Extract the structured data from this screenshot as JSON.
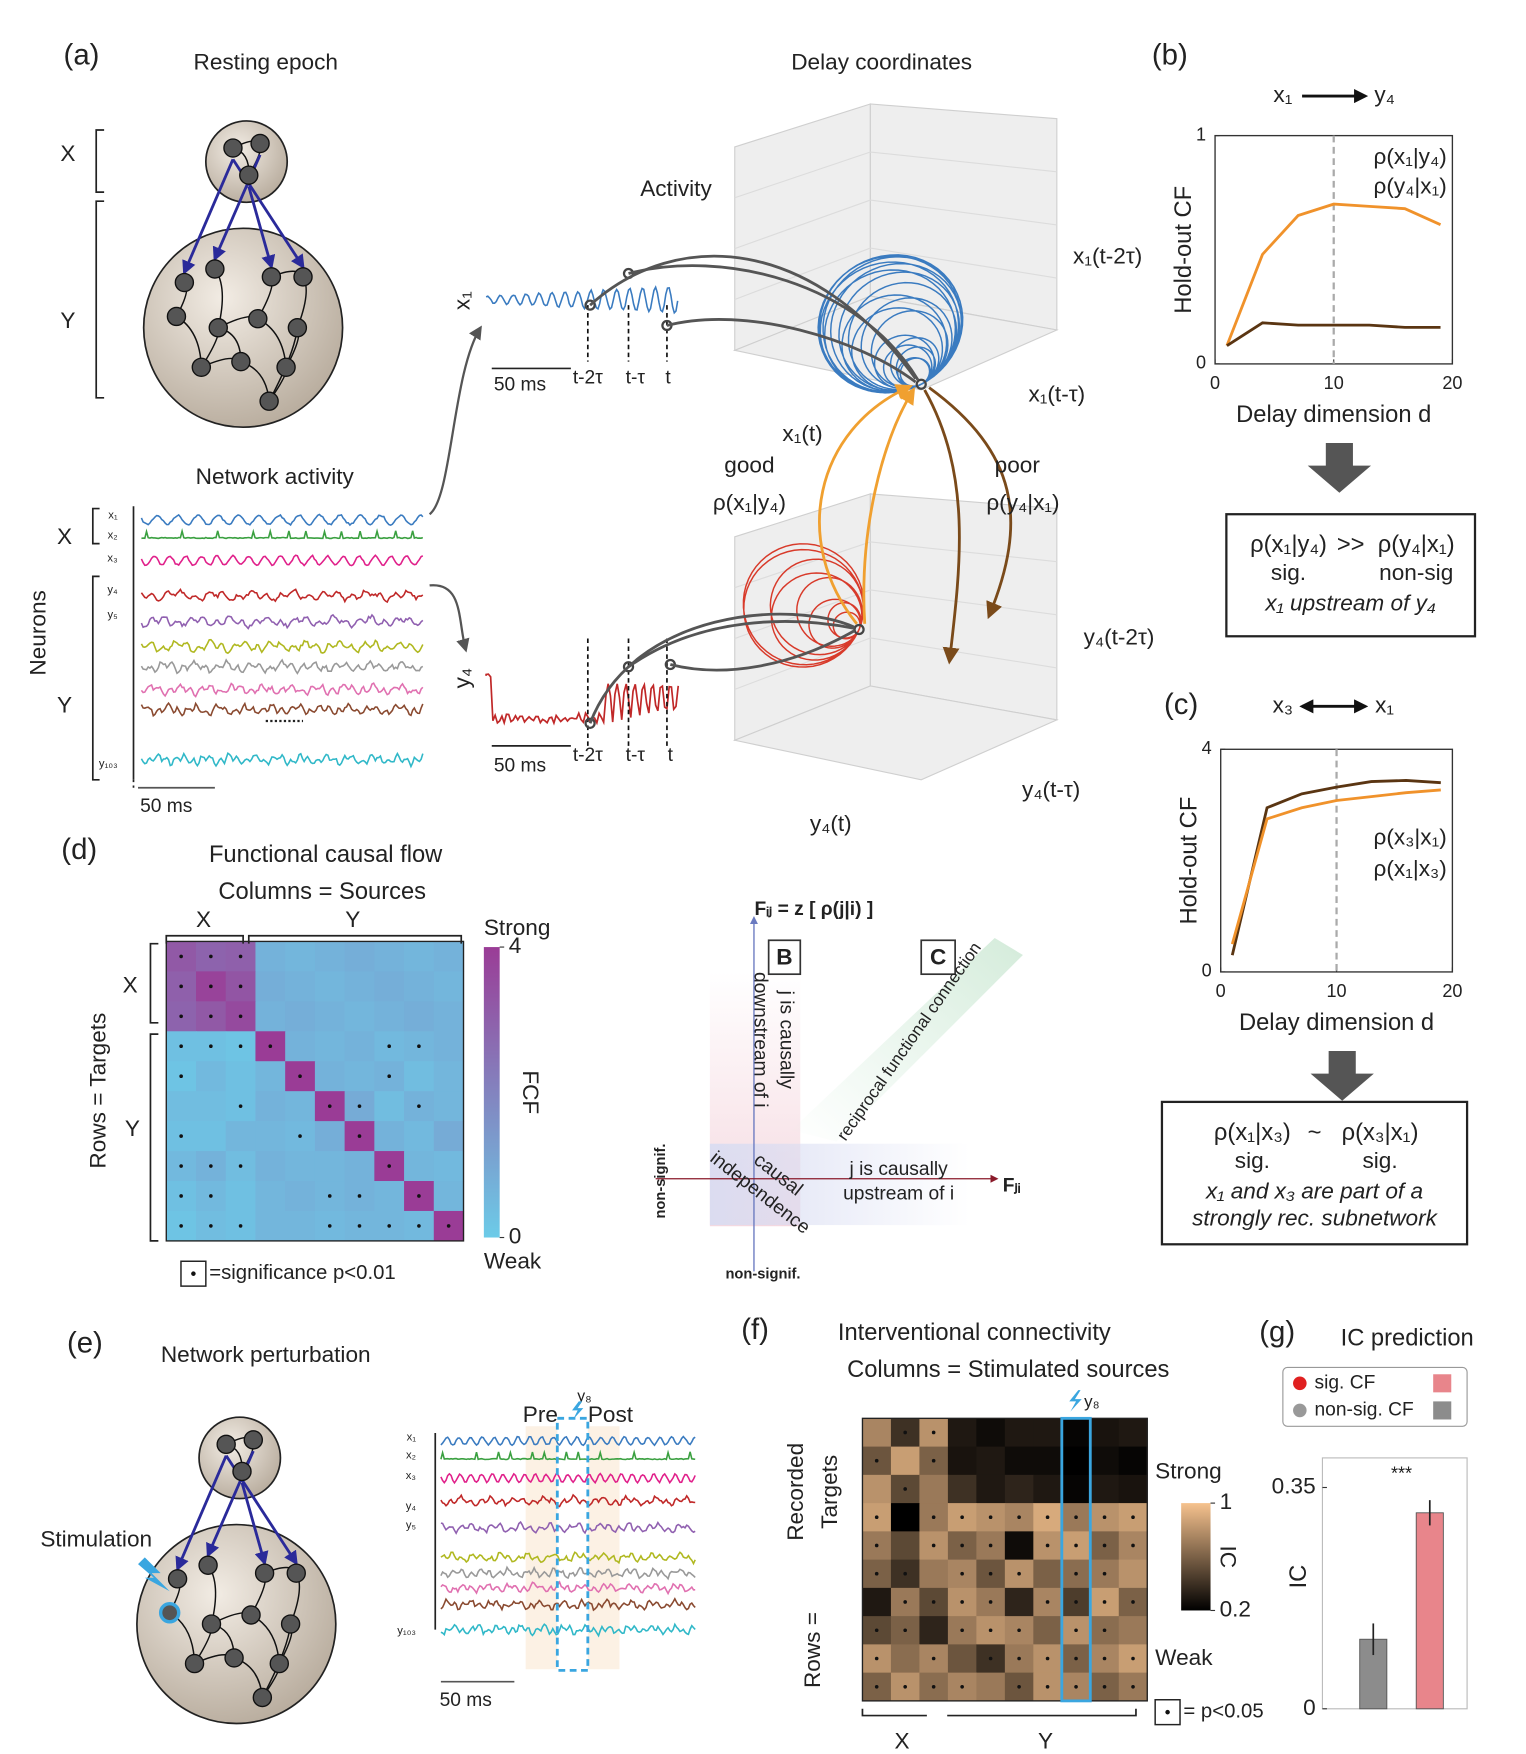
{
  "figure": {
    "a": {
      "label": "(a)",
      "resting": "Resting epoch",
      "delay": "Delay coordinates",
      "activity": "Activity",
      "network": "Network activity",
      "neurons": "Neurons",
      "X": "X",
      "Y": "Y",
      "scale": "50 ms",
      "x1": "x₁",
      "y4": "y₄",
      "t2": "t-2τ",
      "t1": "t-τ",
      "t": "t",
      "ax": [
        "x₁(t-2τ)",
        "x₁(t-τ)",
        "x₁(t)"
      ],
      "ay": [
        "y₄(t-2τ)",
        "y₄(t-τ)",
        "y₄(t)"
      ],
      "good": "good",
      "goodrho": "ρ(x₁|y₄)",
      "poor": "poor",
      "poorrho": "ρ(y₄|x₁)",
      "traces": [
        "x₁",
        "x₂",
        "x₃",
        "y₄",
        "y₅",
        "y₁₀₃"
      ]
    },
    "diagram": {
      "fij": "Fᵢⱼ = z [ ρ(j|i) ]",
      "fji": "Fⱼᵢ",
      "B": "B",
      "C": "C",
      "down1": "j is causally",
      "down2": "downstream of i",
      "recip": "reciprocal functional connection",
      "ind1": "causal",
      "ind2": "independence",
      "up1": "j is causally",
      "up2": "upstream of i",
      "nonsig": "non-signif."
    },
    "e": {
      "label": "(e)",
      "title": "Network perturbation",
      "stim": "Stimulation",
      "pre": "Pre",
      "post": "Post",
      "y8": "y₈",
      "scale": "50 ms",
      "traces": [
        "x₁",
        "x₂",
        "x₃",
        "y₄",
        "y₅",
        "y₁₀₃"
      ]
    }
  },
  "chart_data": [
    {
      "type": "line",
      "label": "(b)",
      "source": "x₁",
      "source_color": "#2a6fb5",
      "target": "y₄",
      "target_color": "#d93030",
      "bidirectional": false,
      "x": [
        1,
        4,
        7,
        10,
        13,
        16,
        19
      ],
      "xlim": [
        0,
        20
      ],
      "xticks": [
        0,
        10,
        20
      ],
      "ylim": [
        0,
        1
      ],
      "yticks": [
        0,
        1
      ],
      "vline": 10,
      "xlabel": "Delay dimension d",
      "ylabel": "Hold-out CF",
      "series": [
        {
          "name": "ρ(x₁|y₄)",
          "color": "#f0922b",
          "values": [
            0.08,
            0.48,
            0.65,
            0.7,
            0.69,
            0.68,
            0.61
          ]
        },
        {
          "name": "ρ(y₄|x₁)",
          "color": "#5a3512",
          "values": [
            0.08,
            0.18,
            0.17,
            0.17,
            0.17,
            0.16,
            0.16
          ]
        }
      ],
      "conclusion": {
        "left": "ρ(x₁|y₄)",
        "op": ">>",
        "right": "ρ(y₄|x₁)",
        "left_sig": "sig.",
        "right_sig": "non-sig",
        "note": [
          "x₁ upstream of y₄"
        ]
      }
    },
    {
      "type": "line",
      "label": "(c)",
      "source": "x₃",
      "source_color": "#2a6fb5",
      "target": "x₁",
      "target_color": "#e0207a",
      "bidirectional": true,
      "x": [
        1,
        4,
        7,
        10,
        13,
        16,
        19
      ],
      "xlim": [
        0,
        20
      ],
      "xticks": [
        0,
        10,
        20
      ],
      "ylim": [
        0,
        4
      ],
      "yticks": [
        0,
        4
      ],
      "vline": 10,
      "xlabel": "Delay dimension d",
      "ylabel": "Hold-out CF",
      "series": [
        {
          "name": "ρ(x₃|x₁)",
          "color": "#5a3512",
          "values": [
            0.3,
            2.95,
            3.2,
            3.32,
            3.42,
            3.44,
            3.4
          ]
        },
        {
          "name": "ρ(x₁|x₃)",
          "color": "#f0922b",
          "values": [
            0.5,
            2.75,
            2.95,
            3.08,
            3.15,
            3.22,
            3.27
          ]
        }
      ],
      "conclusion": {
        "left": "ρ(x₁|x₃)",
        "op": "~",
        "right": "ρ(x₃|x₁)",
        "left_sig": "sig.",
        "right_sig": "sig.",
        "note": [
          "x₁ and x₃ are part of a",
          "strongly rec. subnetwork"
        ]
      }
    },
    {
      "type": "heatmap",
      "label": "(d)",
      "title": "Functional causal flow",
      "subtitle": "Columns = Sources",
      "rows_label": "Rows = Targets",
      "col_groups": [
        "X",
        "Y"
      ],
      "row_groups": [
        "X",
        "Y"
      ],
      "clim": [
        0,
        4
      ],
      "cticks": [
        0,
        4
      ],
      "strong": "Strong",
      "weak": "Weak",
      "clabel": "FCF",
      "sig_label": "=significance p<0.01",
      "colormap": [
        "#6ccbe8",
        "#9a3c96"
      ],
      "values": [
        [
          3.2,
          2.9,
          3.0,
          0.7,
          0.6,
          0.7,
          0.8,
          0.7,
          0.6,
          0.7
        ],
        [
          3.0,
          3.8,
          3.3,
          0.8,
          0.7,
          0.6,
          0.7,
          0.8,
          0.7,
          0.6
        ],
        [
          2.9,
          3.2,
          3.6,
          0.7,
          0.8,
          0.7,
          0.6,
          0.7,
          0.8,
          0.7
        ],
        [
          0.3,
          0.3,
          0.2,
          4.0,
          0.7,
          0.6,
          0.7,
          0.5,
          0.6,
          0.7
        ],
        [
          0.2,
          0.5,
          0.3,
          0.6,
          4.0,
          0.7,
          0.6,
          0.7,
          0.4,
          0.6
        ],
        [
          0.4,
          0.4,
          0.3,
          0.7,
          0.6,
          4.0,
          0.9,
          0.4,
          0.7,
          0.6
        ],
        [
          0.3,
          0.3,
          0.6,
          0.6,
          0.5,
          0.8,
          4.0,
          0.7,
          0.5,
          0.9
        ],
        [
          0.5,
          0.7,
          0.4,
          0.7,
          0.6,
          0.6,
          0.7,
          4.0,
          0.6,
          0.5
        ],
        [
          0.3,
          0.5,
          0.3,
          0.6,
          0.7,
          0.6,
          0.7,
          0.6,
          4.0,
          0.6
        ],
        [
          0.2,
          0.4,
          0.3,
          0.6,
          0.6,
          0.5,
          0.6,
          0.6,
          0.5,
          4.0
        ]
      ],
      "sig": [
        [
          1,
          1,
          1,
          0,
          0,
          0,
          0,
          0,
          0,
          0
        ],
        [
          1,
          1,
          1,
          0,
          0,
          0,
          0,
          0,
          0,
          0
        ],
        [
          1,
          1,
          1,
          0,
          0,
          0,
          0,
          0,
          0,
          0
        ],
        [
          1,
          1,
          1,
          1,
          0,
          0,
          0,
          1,
          1,
          0
        ],
        [
          1,
          0,
          0,
          0,
          1,
          0,
          0,
          1,
          0,
          0
        ],
        [
          0,
          0,
          1,
          0,
          0,
          1,
          1,
          0,
          1,
          0
        ],
        [
          1,
          0,
          0,
          0,
          1,
          0,
          1,
          0,
          0,
          0
        ],
        [
          1,
          1,
          1,
          0,
          0,
          0,
          0,
          1,
          0,
          0
        ],
        [
          1,
          1,
          0,
          0,
          0,
          1,
          1,
          0,
          1,
          0
        ],
        [
          1,
          1,
          1,
          0,
          0,
          1,
          1,
          1,
          1,
          1
        ]
      ]
    },
    {
      "type": "heatmap",
      "label": "(f)",
      "title": "Interventional connectivity",
      "subtitle": "Columns = Stimulated sources",
      "rows_label": "Rows =",
      "rows_label2": [
        "Recorded",
        "Targets"
      ],
      "col_groups": [
        "X",
        "Y"
      ],
      "clim": [
        0.2,
        1
      ],
      "cticks": [
        0.2,
        1
      ],
      "strong": "Strong",
      "weak": "Weak",
      "clabel": "IC",
      "sig_label": "= p<0.05",
      "colormap": [
        "#000000",
        "#f6c28e"
      ],
      "highlight_col": 7,
      "highlight_label": "y₈",
      "values": [
        [
          0.75,
          0.4,
          0.8,
          0.3,
          0.25,
          0.3,
          0.3,
          0.22,
          0.28,
          0.3
        ],
        [
          0.55,
          0.85,
          0.6,
          0.28,
          0.3,
          0.25,
          0.25,
          0.2,
          0.25,
          0.22
        ],
        [
          0.8,
          0.5,
          0.7,
          0.4,
          0.3,
          0.35,
          0.3,
          0.22,
          0.3,
          0.28
        ],
        [
          0.85,
          0.2,
          0.7,
          0.85,
          0.8,
          0.75,
          0.9,
          0.7,
          0.8,
          0.85
        ],
        [
          0.7,
          0.5,
          0.8,
          0.6,
          0.7,
          0.25,
          0.8,
          0.85,
          0.6,
          0.75
        ],
        [
          0.6,
          0.4,
          0.7,
          0.75,
          0.55,
          0.8,
          0.6,
          0.65,
          0.7,
          0.8
        ],
        [
          0.3,
          0.7,
          0.5,
          0.8,
          0.7,
          0.35,
          0.75,
          0.45,
          0.85,
          0.6
        ],
        [
          0.5,
          0.6,
          0.35,
          0.7,
          0.8,
          0.75,
          0.6,
          0.8,
          0.65,
          0.7
        ],
        [
          0.8,
          0.65,
          0.75,
          0.55,
          0.4,
          0.7,
          0.8,
          0.6,
          0.75,
          0.85
        ],
        [
          0.6,
          0.8,
          0.65,
          0.75,
          0.7,
          0.55,
          0.8,
          0.75,
          0.6,
          0.7
        ]
      ],
      "sig": [
        [
          0,
          1,
          1,
          0,
          0,
          0,
          0,
          0,
          0,
          0
        ],
        [
          1,
          0,
          1,
          0,
          0,
          0,
          0,
          0,
          0,
          0
        ],
        [
          0,
          1,
          0,
          0,
          0,
          0,
          0,
          0,
          0,
          0
        ],
        [
          1,
          0,
          1,
          1,
          1,
          1,
          1,
          1,
          1,
          1
        ],
        [
          1,
          0,
          1,
          1,
          1,
          0,
          1,
          1,
          1,
          1
        ],
        [
          1,
          1,
          0,
          1,
          1,
          1,
          0,
          1,
          1,
          0
        ],
        [
          0,
          1,
          1,
          1,
          1,
          0,
          1,
          1,
          1,
          1
        ],
        [
          1,
          1,
          0,
          1,
          1,
          1,
          0,
          1,
          1,
          0
        ],
        [
          1,
          0,
          1,
          0,
          1,
          1,
          1,
          1,
          1,
          1
        ],
        [
          1,
          1,
          1,
          1,
          0,
          1,
          1,
          1,
          1,
          1
        ]
      ]
    },
    {
      "type": "bar",
      "label": "(g)",
      "title": "IC prediction",
      "ylabel": "IC",
      "ylim": [
        0,
        0.37
      ],
      "yticks": [
        0,
        0.35
      ],
      "values": [
        0.11,
        0.31
      ],
      "errors": [
        0.025,
        0.02
      ],
      "colors": [
        "#8c8c8c",
        "#e8858b"
      ],
      "annotation": "***",
      "legend": [
        {
          "name": "sig. CF",
          "dot": "#e02020",
          "color": "#e8858b"
        },
        {
          "name": "non-sig. CF",
          "dot": "#999999",
          "color": "#8c8c8c"
        }
      ]
    }
  ]
}
